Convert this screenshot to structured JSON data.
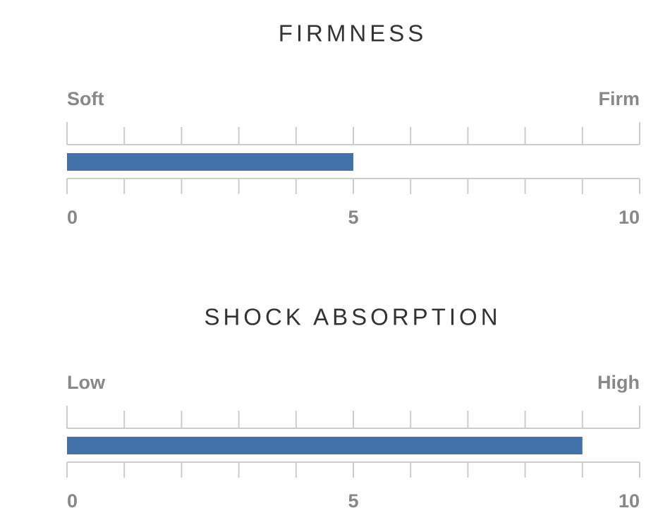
{
  "chart_data": [
    {
      "type": "gauge",
      "title": "FIRMNESS",
      "left_label": "Soft",
      "right_label": "Firm",
      "value": 5,
      "color": "#4272aa",
      "xlim": [
        0,
        10
      ],
      "xticks": [
        0,
        5,
        10
      ],
      "minor_xticks": [
        1,
        2,
        3,
        4,
        6,
        7,
        8,
        9
      ]
    },
    {
      "type": "gauge",
      "title": "SHOCK ABSORPTION",
      "left_label": "Low",
      "right_label": "High",
      "value": 9,
      "color": "#4272aa",
      "xlim": [
        0,
        10
      ],
      "xticks": [
        0,
        5,
        10
      ],
      "minor_xticks": [
        1,
        2,
        3,
        4,
        6,
        7,
        8,
        9
      ]
    }
  ]
}
